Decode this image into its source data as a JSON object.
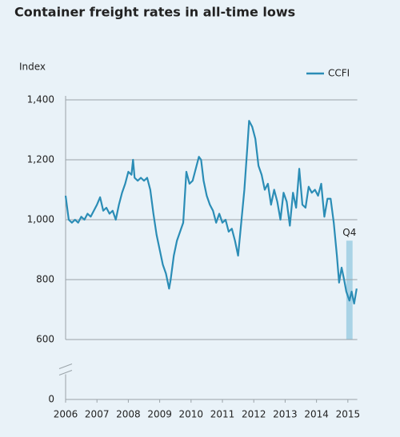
{
  "chart_data": {
    "type": "line",
    "title": "Container freight rates in all-time lows",
    "y_label": "Index",
    "legend": "top-right",
    "grid": true,
    "xlim": [
      2006,
      2015.3
    ],
    "xticks": [
      2006,
      2007,
      2008,
      2009,
      2010,
      2011,
      2012,
      2013,
      2014,
      2015
    ],
    "ylim": [
      0,
      1400
    ],
    "axis_break": [
      0,
      600
    ],
    "yticks": [
      0,
      600,
      800,
      {
        "value": 1000,
        "label": "1,000"
      },
      {
        "value": 1200,
        "label": "1,200"
      },
      {
        "value": 1400,
        "label": "1,400"
      }
    ],
    "band": {
      "label": "Q4",
      "x": [
        2014.95,
        2015.15
      ],
      "y": [
        600,
        930
      ],
      "color": "#a9d3e6"
    },
    "x": [
      2006.0,
      2006.05,
      2006.1,
      2006.2,
      2006.3,
      2006.4,
      2006.5,
      2006.6,
      2006.7,
      2006.8,
      2006.9,
      2007.0,
      2007.1,
      2007.2,
      2007.3,
      2007.4,
      2007.5,
      2007.6,
      2007.7,
      2007.8,
      2007.9,
      2008.0,
      2008.1,
      2008.15,
      2008.2,
      2008.3,
      2008.4,
      2008.5,
      2008.6,
      2008.7,
      2008.8,
      2008.9,
      2009.0,
      2009.1,
      2009.2,
      2009.3,
      2009.35,
      2009.45,
      2009.55,
      2009.65,
      2009.75,
      2009.85,
      2009.95,
      2010.05,
      2010.15,
      2010.25,
      2010.32,
      2010.4,
      2010.5,
      2010.6,
      2010.7,
      2010.8,
      2010.9,
      2011.0,
      2011.1,
      2011.2,
      2011.3,
      2011.4,
      2011.5,
      2011.6,
      2011.7,
      2011.8,
      2011.85,
      2011.95,
      2012.05,
      2012.15,
      2012.25,
      2012.35,
      2012.45,
      2012.55,
      2012.65,
      2012.75,
      2012.85,
      2012.95,
      2013.05,
      2013.15,
      2013.25,
      2013.35,
      2013.45,
      2013.55,
      2013.65,
      2013.75,
      2013.85,
      2013.95,
      2014.05,
      2014.15,
      2014.25,
      2014.35,
      2014.45,
      2014.55,
      2014.65,
      2014.72,
      2014.8,
      2014.88,
      2014.95,
      2015.05,
      2015.12,
      2015.2,
      2015.28
    ],
    "series": [
      {
        "name": "CCFI",
        "color": "#2b8db6",
        "values": [
          1080,
          1040,
          1000,
          990,
          1000,
          990,
          1010,
          1000,
          1020,
          1010,
          1030,
          1050,
          1075,
          1030,
          1040,
          1020,
          1030,
          1000,
          1050,
          1090,
          1120,
          1160,
          1150,
          1200,
          1140,
          1130,
          1140,
          1130,
          1140,
          1100,
          1020,
          950,
          900,
          850,
          820,
          770,
          800,
          880,
          930,
          960,
          990,
          1160,
          1120,
          1130,
          1170,
          1210,
          1200,
          1130,
          1080,
          1050,
          1030,
          990,
          1020,
          990,
          1000,
          960,
          970,
          930,
          880,
          990,
          1100,
          1250,
          1330,
          1310,
          1270,
          1180,
          1150,
          1100,
          1120,
          1050,
          1100,
          1060,
          1000,
          1090,
          1060,
          980,
          1090,
          1040,
          1170,
          1050,
          1040,
          1110,
          1090,
          1100,
          1080,
          1120,
          1010,
          1070,
          1070,
          990,
          880,
          790,
          840,
          800,
          760,
          730,
          760,
          720,
          770
        ]
      }
    ]
  }
}
